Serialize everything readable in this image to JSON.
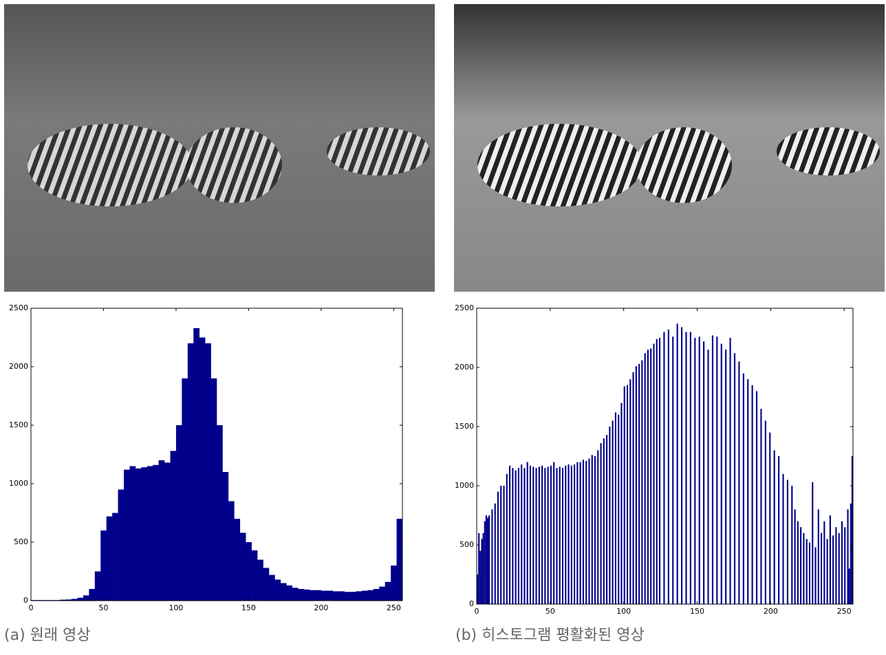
{
  "chart_data": [
    {
      "type": "histogram",
      "caption": "(a) 원래 영상",
      "color": "#00008b",
      "bins": [
        0,
        4,
        8,
        12,
        16,
        20,
        24,
        28,
        32,
        36,
        40,
        44,
        48,
        52,
        56,
        60,
        64,
        68,
        72,
        76,
        80,
        84,
        88,
        92,
        96,
        100,
        104,
        108,
        112,
        116,
        120,
        124,
        128,
        132,
        136,
        140,
        144,
        148,
        152,
        156,
        160,
        164,
        168,
        172,
        176,
        180,
        184,
        188,
        192,
        196,
        200,
        204,
        208,
        212,
        216,
        220,
        224,
        228,
        232,
        236,
        240,
        244,
        248,
        252,
        256
      ],
      "values": [
        5,
        5,
        5,
        5,
        5,
        8,
        10,
        15,
        25,
        45,
        100,
        250,
        600,
        720,
        750,
        950,
        1120,
        1150,
        1130,
        1140,
        1150,
        1160,
        1200,
        1180,
        1280,
        1500,
        1900,
        2200,
        2330,
        2250,
        2200,
        1900,
        1500,
        1100,
        850,
        700,
        580,
        500,
        430,
        350,
        280,
        220,
        180,
        150,
        130,
        110,
        100,
        95,
        90,
        90,
        85,
        85,
        80,
        80,
        75,
        75,
        80,
        85,
        90,
        100,
        120,
        160,
        300,
        700
      ],
      "xlim": [
        0,
        256
      ],
      "ylim": [
        0,
        2500
      ],
      "xticks": [
        0,
        50,
        100,
        150,
        200,
        250
      ],
      "yticks": [
        0,
        500,
        1000,
        1500,
        2000,
        2500
      ]
    },
    {
      "type": "bar",
      "caption": "(b) 히스토그램 평활화된 영상",
      "color": "#00008b",
      "x": [
        0,
        1,
        2,
        3,
        4,
        5,
        6,
        7,
        8,
        10,
        12,
        14,
        16,
        18,
        20,
        22,
        24,
        26,
        28,
        30,
        32,
        34,
        36,
        38,
        40,
        42,
        44,
        46,
        48,
        50,
        52,
        54,
        56,
        58,
        60,
        62,
        64,
        66,
        68,
        70,
        72,
        74,
        76,
        78,
        80,
        82,
        84,
        86,
        88,
        90,
        92,
        94,
        96,
        98,
        100,
        102,
        104,
        106,
        108,
        110,
        112,
        114,
        116,
        118,
        120,
        122,
        124,
        127,
        130,
        133,
        136,
        139,
        142,
        145,
        148,
        151,
        154,
        157,
        160,
        163,
        166,
        169,
        172,
        175,
        178,
        181,
        184,
        187,
        190,
        193,
        196,
        199,
        202,
        205,
        208,
        211,
        214,
        216,
        218,
        220,
        222,
        224,
        226,
        228,
        230,
        232,
        234,
        236,
        238,
        240,
        242,
        244,
        246,
        248,
        250,
        252,
        253,
        254,
        255
      ],
      "values": [
        250,
        600,
        450,
        550,
        600,
        700,
        750,
        730,
        750,
        800,
        850,
        950,
        1000,
        1000,
        1100,
        1170,
        1150,
        1130,
        1150,
        1180,
        1150,
        1200,
        1170,
        1160,
        1150,
        1160,
        1170,
        1150,
        1160,
        1170,
        1200,
        1150,
        1160,
        1150,
        1170,
        1180,
        1170,
        1180,
        1200,
        1200,
        1220,
        1210,
        1230,
        1260,
        1250,
        1300,
        1360,
        1400,
        1430,
        1500,
        1550,
        1620,
        1600,
        1700,
        1840,
        1850,
        1900,
        1960,
        2010,
        2030,
        2060,
        2120,
        2150,
        2160,
        2200,
        2240,
        2250,
        2300,
        2320,
        2260,
        2370,
        2340,
        2300,
        2300,
        2250,
        2260,
        2220,
        2150,
        2270,
        2260,
        2200,
        2150,
        2250,
        2120,
        2050,
        1950,
        1900,
        1850,
        1800,
        1650,
        1550,
        1450,
        1300,
        1250,
        1100,
        1050,
        1000,
        800,
        700,
        650,
        600,
        550,
        520,
        1030,
        480,
        800,
        600,
        700,
        550,
        750,
        580,
        650,
        600,
        700,
        650,
        800,
        300,
        850,
        1250
      ],
      "xlim": [
        0,
        256
      ],
      "ylim": [
        0,
        2500
      ],
      "xticks": [
        0,
        50,
        100,
        150,
        200,
        250
      ],
      "yticks": [
        0,
        500,
        1000,
        1500,
        2000,
        2500
      ]
    }
  ]
}
